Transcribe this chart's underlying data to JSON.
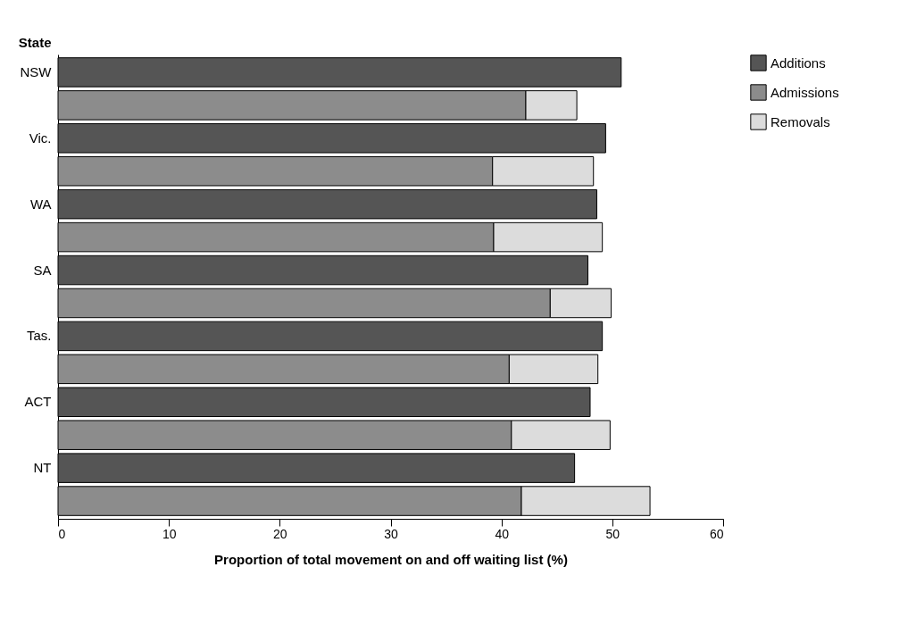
{
  "chart_data": {
    "type": "bar",
    "orientation": "horizontal",
    "stacked": true,
    "ylabel": "State",
    "xlabel": "Proportion of total movement on and off waiting list (%)",
    "categories": [
      "NSW",
      null,
      "Vic.",
      null,
      "WA",
      null,
      "SA",
      null,
      "Tas.",
      null,
      "ACT",
      null,
      "NT",
      null
    ],
    "series": [
      {
        "name": "Additions",
        "color": "#555555",
        "values": [
          50.8,
          null,
          49.4,
          null,
          48.6,
          null,
          47.8,
          null,
          49.1,
          null,
          48.0,
          null,
          46.6,
          null
        ]
      },
      {
        "name": "Admissions",
        "color": "#8c8c8c",
        "values": [
          null,
          42.2,
          null,
          39.2,
          null,
          39.3,
          null,
          44.4,
          null,
          40.7,
          null,
          40.9,
          null,
          41.8
        ]
      },
      {
        "name": "Removals",
        "color": "#dcdcdc",
        "values": [
          null,
          4.6,
          null,
          9.1,
          null,
          9.8,
          null,
          5.5,
          null,
          8.0,
          null,
          8.9,
          null,
          11.6
        ]
      }
    ],
    "xlim": [
      0,
      60
    ],
    "xticks": [
      0,
      10,
      20,
      30,
      40,
      50,
      60
    ],
    "grid": false,
    "legend": "right"
  }
}
